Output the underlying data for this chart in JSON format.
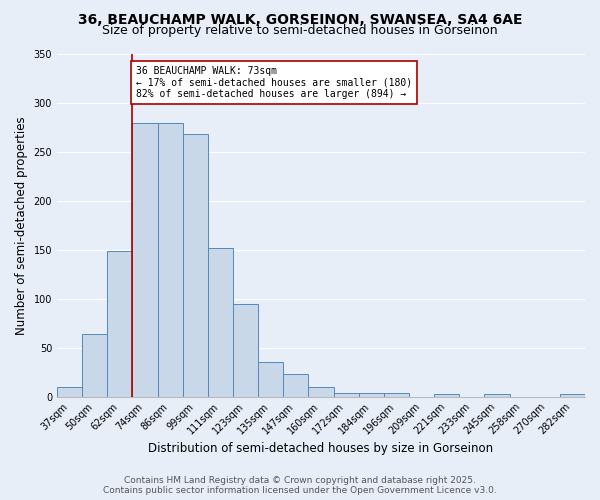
{
  "title_line1": "36, BEAUCHAMP WALK, GORSEINON, SWANSEA, SA4 6AE",
  "title_line2": "Size of property relative to semi-detached houses in Gorseinon",
  "xlabel": "Distribution of semi-detached houses by size in Gorseinon",
  "ylabel": "Number of semi-detached properties",
  "categories": [
    "37sqm",
    "50sqm",
    "62sqm",
    "74sqm",
    "86sqm",
    "99sqm",
    "111sqm",
    "123sqm",
    "135sqm",
    "147sqm",
    "160sqm",
    "172sqm",
    "184sqm",
    "196sqm",
    "209sqm",
    "221sqm",
    "233sqm",
    "245sqm",
    "258sqm",
    "270sqm",
    "282sqm"
  ],
  "values": [
    10,
    64,
    149,
    280,
    280,
    268,
    152,
    95,
    35,
    23,
    10,
    4,
    4,
    4,
    0,
    3,
    0,
    3,
    0,
    0,
    3
  ],
  "bar_color": "#c8d8e8",
  "bar_edge_color": "#5588bb",
  "vline_x_idx": 3,
  "vline_color": "#aa0000",
  "annotation_text": "36 BEAUCHAMP WALK: 73sqm\n← 17% of semi-detached houses are smaller (180)\n82% of semi-detached houses are larger (894) →",
  "annotation_box_color": "#ffffff",
  "annotation_box_edge": "#aa0000",
  "ylim": [
    0,
    350
  ],
  "yticks": [
    0,
    50,
    100,
    150,
    200,
    250,
    300,
    350
  ],
  "footer_line1": "Contains HM Land Registry data © Crown copyright and database right 2025.",
  "footer_line2": "Contains public sector information licensed under the Open Government Licence v3.0.",
  "background_color": "#e8eef8",
  "grid_color": "#ffffff",
  "title_fontsize": 10,
  "subtitle_fontsize": 9,
  "axis_label_fontsize": 8.5,
  "tick_fontsize": 7,
  "annotation_fontsize": 7,
  "footer_fontsize": 6.5
}
